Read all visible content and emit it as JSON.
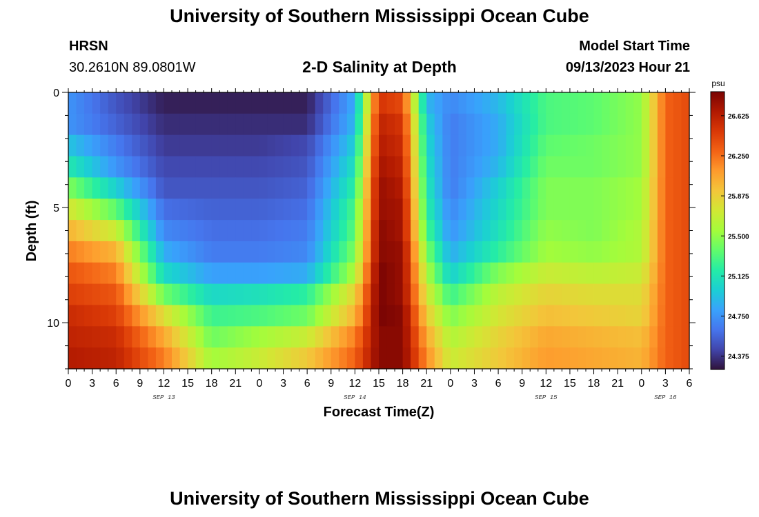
{
  "header": {
    "title": "University of Southern Mississippi Ocean Cube",
    "station": "HRSN",
    "coordinates": "30.2610N  89.0801W",
    "product": "2-D Salinity at Depth",
    "model_start_label": "Model Start Time",
    "model_start_time": "09/13/2023 Hour 21"
  },
  "footer": {
    "title": "University of Southern Mississippi Ocean Cube"
  },
  "chart_data": {
    "type": "heatmap",
    "title": "2-D Salinity at Depth",
    "xlabel": "Forecast Time(Z)",
    "ylabel": "Depth (ft)",
    "ylim": [
      0,
      12
    ],
    "y_ticks": [
      "0",
      "5",
      "10"
    ],
    "y_tick_values": [
      0,
      5,
      10
    ],
    "x_tick_labels": [
      "0",
      "3",
      "6",
      "9",
      "12",
      "15",
      "18",
      "21",
      "0",
      "3",
      "6",
      "9",
      "12",
      "15",
      "18",
      "21",
      "0",
      "3",
      "6",
      "9",
      "12",
      "15",
      "18",
      "21",
      "0",
      "3",
      "6"
    ],
    "x_hours_from_sep13": [
      0,
      78
    ],
    "date_labels": [
      "SEP 13",
      "SEP 14",
      "SEP 15",
      "SEP 16"
    ],
    "date_label_hours": [
      12,
      36,
      60,
      75
    ],
    "colorbar": {
      "unit": "psu",
      "min": 24.25,
      "max": 26.85,
      "tick_labels": [
        "24.375",
        "24.750",
        "25.125",
        "25.500",
        "25.875",
        "26.250",
        "26.625"
      ],
      "tick_values": [
        24.375,
        24.75,
        25.125,
        25.5,
        25.875,
        26.25,
        26.625
      ],
      "colors": [
        "#30123b",
        "#4145ab",
        "#4675ed",
        "#39a2fc",
        "#1bcfd4",
        "#24eca6",
        "#61fc6c",
        "#a4fc3b",
        "#d1e834",
        "#f3c63a",
        "#fe9b2d",
        "#f36315",
        "#d93806",
        "#b11901",
        "#7a0403"
      ]
    },
    "depths_ft": [
      0,
      1,
      2,
      3,
      4,
      5,
      6,
      7,
      8,
      9,
      10,
      11,
      12
    ],
    "times_hours": [
      0,
      6,
      12,
      18,
      24,
      30,
      36,
      39,
      42,
      45,
      48,
      54,
      60,
      66,
      72,
      75,
      78
    ],
    "salinity_psu": [
      [
        24.75,
        24.5,
        24.3,
        24.3,
        24.3,
        24.3,
        24.85,
        26.5,
        26.4,
        24.9,
        24.7,
        24.9,
        25.3,
        25.35,
        25.5,
        26.3,
        26.4
      ],
      [
        24.75,
        24.55,
        24.35,
        24.35,
        24.35,
        24.35,
        24.9,
        26.6,
        26.5,
        25.0,
        24.65,
        24.85,
        25.3,
        25.35,
        25.5,
        26.3,
        26.4
      ],
      [
        24.95,
        24.65,
        24.4,
        24.4,
        24.4,
        24.45,
        25.0,
        26.65,
        26.55,
        25.05,
        24.65,
        24.85,
        25.35,
        25.4,
        25.5,
        26.3,
        26.4
      ],
      [
        25.15,
        24.75,
        24.45,
        24.45,
        24.45,
        24.5,
        25.1,
        26.7,
        26.6,
        25.1,
        24.65,
        24.9,
        25.4,
        25.4,
        25.5,
        26.3,
        26.4
      ],
      [
        25.45,
        25.0,
        24.5,
        24.5,
        24.5,
        24.55,
        25.2,
        26.75,
        26.65,
        25.15,
        24.65,
        25.0,
        25.45,
        25.45,
        25.55,
        26.3,
        26.4
      ],
      [
        25.75,
        25.35,
        24.6,
        24.55,
        24.55,
        24.6,
        25.3,
        26.75,
        26.7,
        25.2,
        24.7,
        25.05,
        25.45,
        25.45,
        25.55,
        26.3,
        26.4
      ],
      [
        26.0,
        25.7,
        24.7,
        24.6,
        24.6,
        24.65,
        25.35,
        26.8,
        26.7,
        25.3,
        24.75,
        25.1,
        25.5,
        25.45,
        25.6,
        26.3,
        26.4
      ],
      [
        26.2,
        26.0,
        24.85,
        24.65,
        24.65,
        24.7,
        25.45,
        26.8,
        26.75,
        25.45,
        24.85,
        25.2,
        25.55,
        25.5,
        25.6,
        26.3,
        26.4
      ],
      [
        26.35,
        26.2,
        25.05,
        24.8,
        24.8,
        24.85,
        25.6,
        26.85,
        26.75,
        25.6,
        25.0,
        25.45,
        25.7,
        25.65,
        25.7,
        26.3,
        26.4
      ],
      [
        26.45,
        26.35,
        25.4,
        25.05,
        25.1,
        25.2,
        25.85,
        26.85,
        26.75,
        25.75,
        25.25,
        25.65,
        25.85,
        25.8,
        25.8,
        26.3,
        26.4
      ],
      [
        26.55,
        26.45,
        25.8,
        25.25,
        25.3,
        25.4,
        26.0,
        26.85,
        26.8,
        25.9,
        25.45,
        25.75,
        25.95,
        25.9,
        25.85,
        26.3,
        26.4
      ],
      [
        26.6,
        26.55,
        26.05,
        25.4,
        25.55,
        25.7,
        26.2,
        26.8,
        26.8,
        26.05,
        25.6,
        25.85,
        26.05,
        26.0,
        25.95,
        26.3,
        26.4
      ],
      [
        26.65,
        26.6,
        26.2,
        25.55,
        25.7,
        25.9,
        26.3,
        26.8,
        26.8,
        26.15,
        25.7,
        25.9,
        26.1,
        26.05,
        26.0,
        26.3,
        26.4
      ]
    ]
  }
}
